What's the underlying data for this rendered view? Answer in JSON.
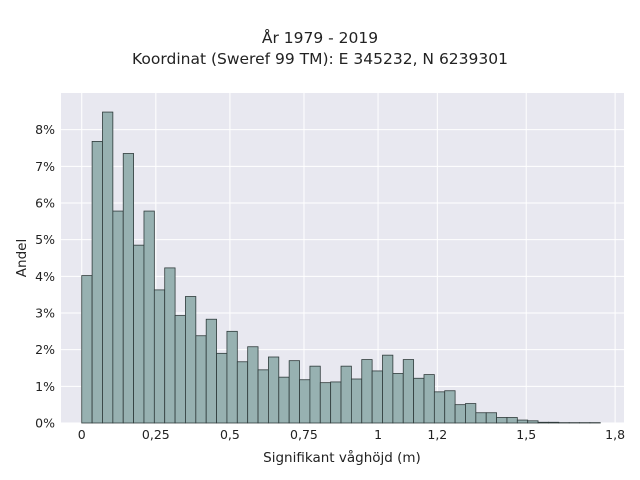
{
  "chart_data": {
    "type": "bar",
    "title": "År 1979 - 2019",
    "subtitle": "Koordinat (Sweref 99 TM): E 345232, N 6239301",
    "xlabel": "Signifikant våghöjd (m)",
    "ylabel": "Andel",
    "xlim": [
      -0.07,
      1.83
    ],
    "ylim": [
      0,
      0.09
    ],
    "bin_start": 0.0,
    "bin_width": 0.035,
    "values": [
      0.0402,
      0.0768,
      0.0848,
      0.0578,
      0.0735,
      0.0485,
      0.0578,
      0.0363,
      0.0423,
      0.0293,
      0.0345,
      0.0238,
      0.0283,
      0.019,
      0.025,
      0.0167,
      0.0208,
      0.0145,
      0.018,
      0.0125,
      0.017,
      0.0118,
      0.0155,
      0.011,
      0.0112,
      0.0155,
      0.012,
      0.0173,
      0.0142,
      0.0185,
      0.0135,
      0.0173,
      0.0122,
      0.0132,
      0.0085,
      0.0088,
      0.005,
      0.0053,
      0.0028,
      0.0028,
      0.0015,
      0.0015,
      0.0008,
      0.0006,
      0.0002,
      0.0002,
      0.0001,
      0.0001,
      0.0001,
      0.0001
    ],
    "x_ticks": [
      0,
      0.25,
      0.5,
      0.75,
      1,
      1.2,
      1.5,
      1.8
    ],
    "x_tick_labels": [
      "0",
      "0,25",
      "0,5",
      "0,75",
      "1",
      "1,2",
      "1,5",
      "1,8"
    ],
    "y_ticks": [
      0,
      0.01,
      0.02,
      0.03,
      0.04,
      0.05,
      0.06,
      0.07,
      0.08
    ],
    "y_tick_labels": [
      "0%",
      "1%",
      "2%",
      "3%",
      "4%",
      "5%",
      "6%",
      "7%",
      "8%"
    ],
    "grid": true,
    "colors": {
      "bar_fill": "#97b1b1",
      "bar_edge": "#2f3b3b",
      "plot_bg": "#e8e8f0",
      "grid": "#ffffff"
    }
  }
}
